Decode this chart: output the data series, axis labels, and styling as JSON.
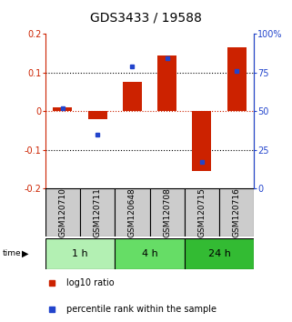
{
  "title": "GDS3433 / 19588",
  "samples": [
    "GSM120710",
    "GSM120711",
    "GSM120648",
    "GSM120708",
    "GSM120715",
    "GSM120716"
  ],
  "groups": [
    {
      "label": "1 h",
      "indices": [
        0,
        1
      ],
      "color": "#b3f0b3"
    },
    {
      "label": "4 h",
      "indices": [
        2,
        3
      ],
      "color": "#66dd66"
    },
    {
      "label": "24 h",
      "indices": [
        4,
        5
      ],
      "color": "#33bb33"
    }
  ],
  "log10_ratio": [
    0.01,
    -0.02,
    0.075,
    0.145,
    -0.155,
    0.165
  ],
  "percentile_rank": [
    52,
    35,
    79,
    84,
    17,
    76
  ],
  "ylim_left": [
    -0.2,
    0.2
  ],
  "ylim_right": [
    0,
    100
  ],
  "yticks_left": [
    -0.2,
    -0.1,
    0.0,
    0.1,
    0.2
  ],
  "yticks_right": [
    0,
    25,
    50,
    75,
    100
  ],
  "bar_color_red": "#cc2200",
  "bar_color_blue": "#2244cc",
  "title_fontsize": 10,
  "tick_fontsize": 7,
  "label_fontsize": 7,
  "group_label_fontsize": 8,
  "sample_label_fontsize": 6.5
}
